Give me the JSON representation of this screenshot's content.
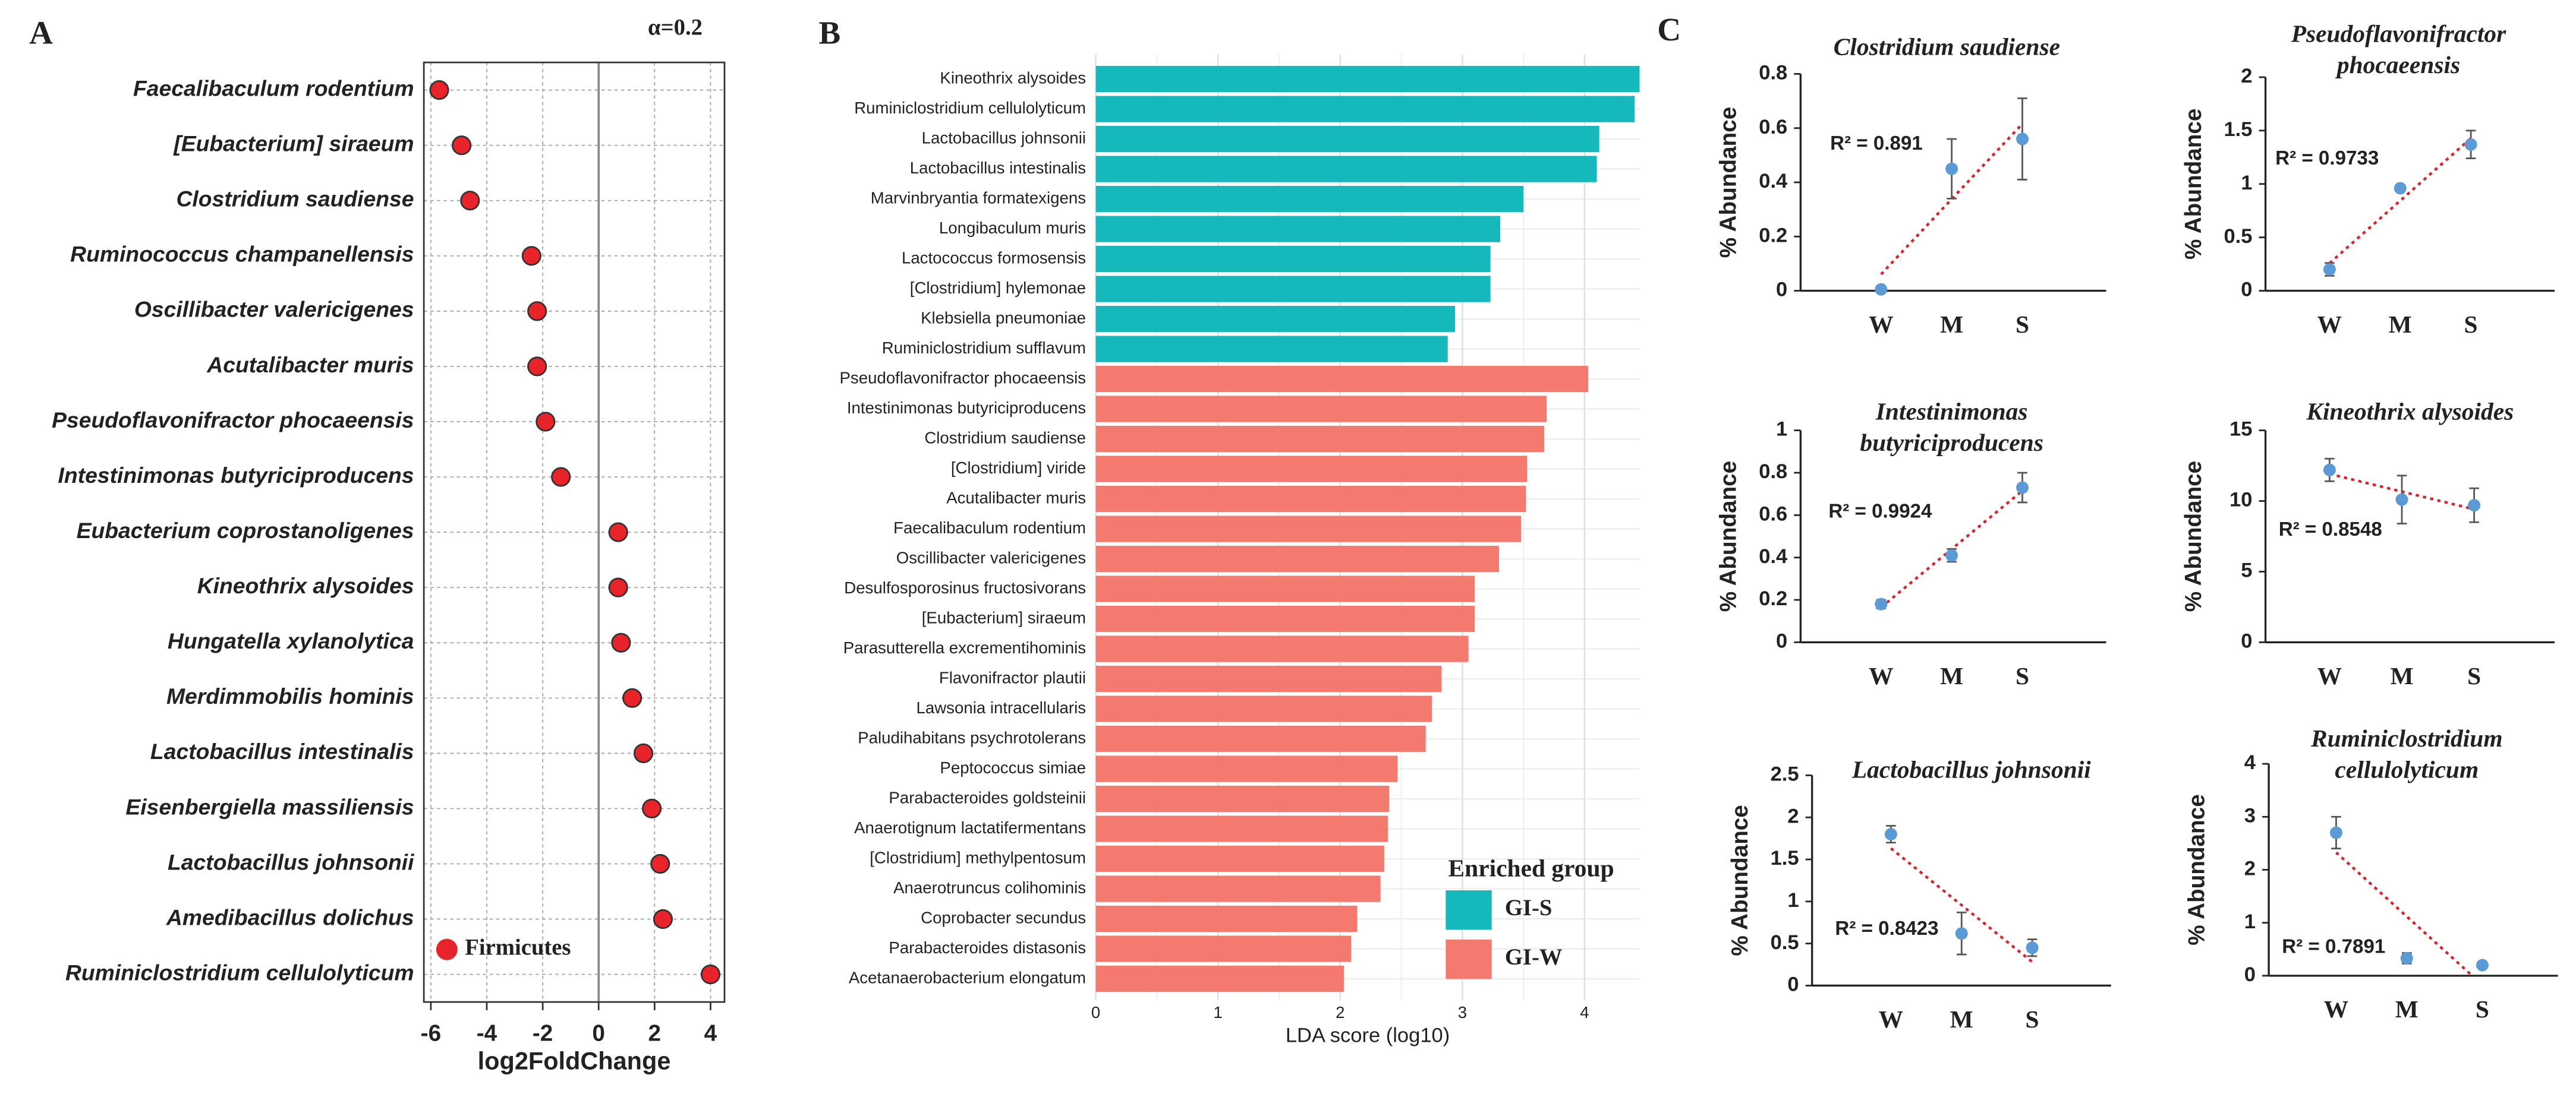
{
  "chart_data": [
    {
      "type": "dot",
      "panel_label": "A",
      "annotation": "α=0.2",
      "x_label": "log2FoldChange",
      "categories": [
        "Faecalibaculum rodentium",
        "[Eubacterium] siraeum",
        "Clostridium saudiense",
        "Ruminococcus champanellensis",
        "Oscillibacter valericigenes",
        "Acutalibacter muris",
        "Pseudoflavonifractor phocaeensis",
        "Intestinimonas butyriciproducens",
        "Eubacterium coprostanoligenes",
        "Kineothrix alysoides",
        "Hungatella xylanolytica",
        "Merdimmobilis hominis",
        "Lactobacillus intestinalis",
        "Eisenbergiella massiliensis",
        "Lactobacillus johnsonii",
        "Amedibacillus dolichus",
        "Ruminiclostridium cellulolyticum"
      ],
      "series": [
        {
          "name": "Firmicutes",
          "color": "#e8232a",
          "values": [
            -5.7,
            -4.9,
            -4.6,
            -2.4,
            -2.2,
            -2.2,
            -1.9,
            -1.35,
            0.7,
            0.7,
            0.8,
            1.2,
            1.6,
            1.9,
            2.2,
            2.3,
            4.0
          ]
        }
      ],
      "xlim": [
        -6.25,
        4.5
      ],
      "xticks": [
        -6,
        -4,
        -2,
        0,
        2,
        4
      ],
      "grid": true
    },
    {
      "type": "barh",
      "panel_label": "B",
      "x_label": "LDA score (log10)",
      "legend_title": "Enriched group",
      "categories": [
        "Kineothrix alysoides",
        "Ruminiclostridium cellulolyticum",
        "Lactobacillus johnsonii",
        "Lactobacillus intestinalis",
        "Marvinbryantia formatexigens",
        "Longibaculum muris",
        "Lactococcus formosensis",
        "[Clostridium] hylemonae",
        "Klebsiella pneumoniae",
        "Ruminiclostridium sufflavum",
        "Pseudoflavonifractor phocaeensis",
        "Intestinimonas butyriciproducens",
        "Clostridium saudiense",
        "[Clostridium] viride",
        "Acutalibacter muris",
        "Faecalibaculum rodentium",
        "Oscillibacter valericigenes",
        "Desulfosporosinus fructosivorans",
        "[Eubacterium] siraeum",
        "Parasutterella excrementihominis",
        "Flavonifractor plautii",
        "Lawsonia intracellularis",
        "Paludihabitans psychrotolerans",
        "Peptococcus simiae",
        "Parabacteroides goldsteinii",
        "Anaerotignum lactatifermentans",
        "[Clostridium] methylpentosum",
        "Anaerotruncus colihominis",
        "Coprobacter secundus",
        "Parabacteroides distasonis",
        "Acetanaerobacterium elongatum"
      ],
      "series": [
        {
          "name": "GI-S",
          "color": "#15b8bb",
          "values": [
            4.45,
            4.41,
            4.12,
            4.1,
            3.5,
            3.31,
            3.23,
            3.23,
            2.94,
            2.88,
            null,
            null,
            null,
            null,
            null,
            null,
            null,
            null,
            null,
            null,
            null,
            null,
            null,
            null,
            null,
            null,
            null,
            null,
            null,
            null,
            null
          ]
        },
        {
          "name": "GI-W",
          "color": "#f47a70",
          "values": [
            null,
            null,
            null,
            null,
            null,
            null,
            null,
            null,
            null,
            null,
            4.03,
            3.69,
            3.67,
            3.53,
            3.52,
            3.48,
            3.3,
            3.1,
            3.1,
            3.05,
            2.83,
            2.75,
            2.7,
            2.47,
            2.4,
            2.39,
            2.36,
            2.33,
            2.14,
            2.09,
            2.03
          ]
        }
      ],
      "xlim": [
        0,
        4.45
      ],
      "xticks": [
        0,
        1,
        2,
        3,
        4
      ],
      "grid": true
    },
    {
      "type": "line",
      "panel_label": "C",
      "title": [
        "Clostridium saudiense"
      ],
      "y_label": "% Abundance",
      "annotation": "R² = 0.891",
      "categories": [
        "W",
        "M",
        "S"
      ],
      "values": [
        0.005,
        0.45,
        0.56
      ],
      "errors": [
        0,
        0.11,
        0.15
      ],
      "color": "#5b9bd5",
      "ylim": [
        0,
        0.8
      ],
      "yticks": [
        0,
        0.2,
        0.4,
        0.6,
        0.8
      ]
    },
    {
      "type": "line",
      "title": [
        "Pseudoflavonifractor",
        "phocaeensis"
      ],
      "y_label": "% Abundance",
      "annotation": "R² = 0.9733",
      "categories": [
        "W",
        "M",
        "S"
      ],
      "values": [
        0.2,
        0.96,
        1.37
      ],
      "errors": [
        0.06,
        0.03,
        0.13
      ],
      "color": "#5b9bd5",
      "ylim": [
        0,
        2
      ],
      "yticks": [
        0,
        0.5,
        1,
        1.5,
        2
      ]
    },
    {
      "type": "line",
      "title": [
        "Intestinimonas",
        "butyriciproducens"
      ],
      "y_label": "% Abundance",
      "annotation": "R² = 0.9924",
      "categories": [
        "W",
        "M",
        "S"
      ],
      "values": [
        0.18,
        0.41,
        0.73
      ],
      "errors": [
        0.02,
        0.03,
        0.07
      ],
      "color": "#5b9bd5",
      "ylim": [
        0,
        1
      ],
      "yticks": [
        0,
        0.2,
        0.4,
        0.6,
        0.8,
        1
      ]
    },
    {
      "type": "line",
      "title": [
        "Kineothrix alysoides"
      ],
      "y_label": "% Abundance",
      "annotation": "R² = 0.8548",
      "categories": [
        "W",
        "M",
        "S"
      ],
      "values": [
        12.2,
        10.1,
        9.7
      ],
      "errors": [
        0.8,
        1.7,
        1.2
      ],
      "color": "#5b9bd5",
      "ylim": [
        0,
        15
      ],
      "yticks": [
        0,
        5,
        10,
        15
      ]
    },
    {
      "type": "line",
      "title": [
        "Lactobacillus johnsonii"
      ],
      "y_label": "% Abundance",
      "annotation": "R² = 0.8423",
      "categories": [
        "W",
        "M",
        "S"
      ],
      "values": [
        1.8,
        0.62,
        0.45
      ],
      "errors": [
        0.1,
        0.25,
        0.1
      ],
      "color": "#5b9bd5",
      "ylim": [
        0,
        2.5
      ],
      "yticks": [
        0,
        0.5,
        1,
        1.5,
        2,
        2.5
      ]
    },
    {
      "type": "line",
      "title": [
        "Ruminiclostridium",
        "cellulolyticum"
      ],
      "y_label": "% Abundance",
      "annotation": "R² = 0.7891",
      "categories": [
        "W",
        "M",
        "S"
      ],
      "values": [
        2.7,
        0.33,
        0.2
      ],
      "errors": [
        0.3,
        0.1,
        0.03
      ],
      "color": "#5b9bd5",
      "ylim": [
        0,
        4
      ],
      "yticks": [
        0,
        1,
        2,
        3,
        4
      ]
    }
  ]
}
